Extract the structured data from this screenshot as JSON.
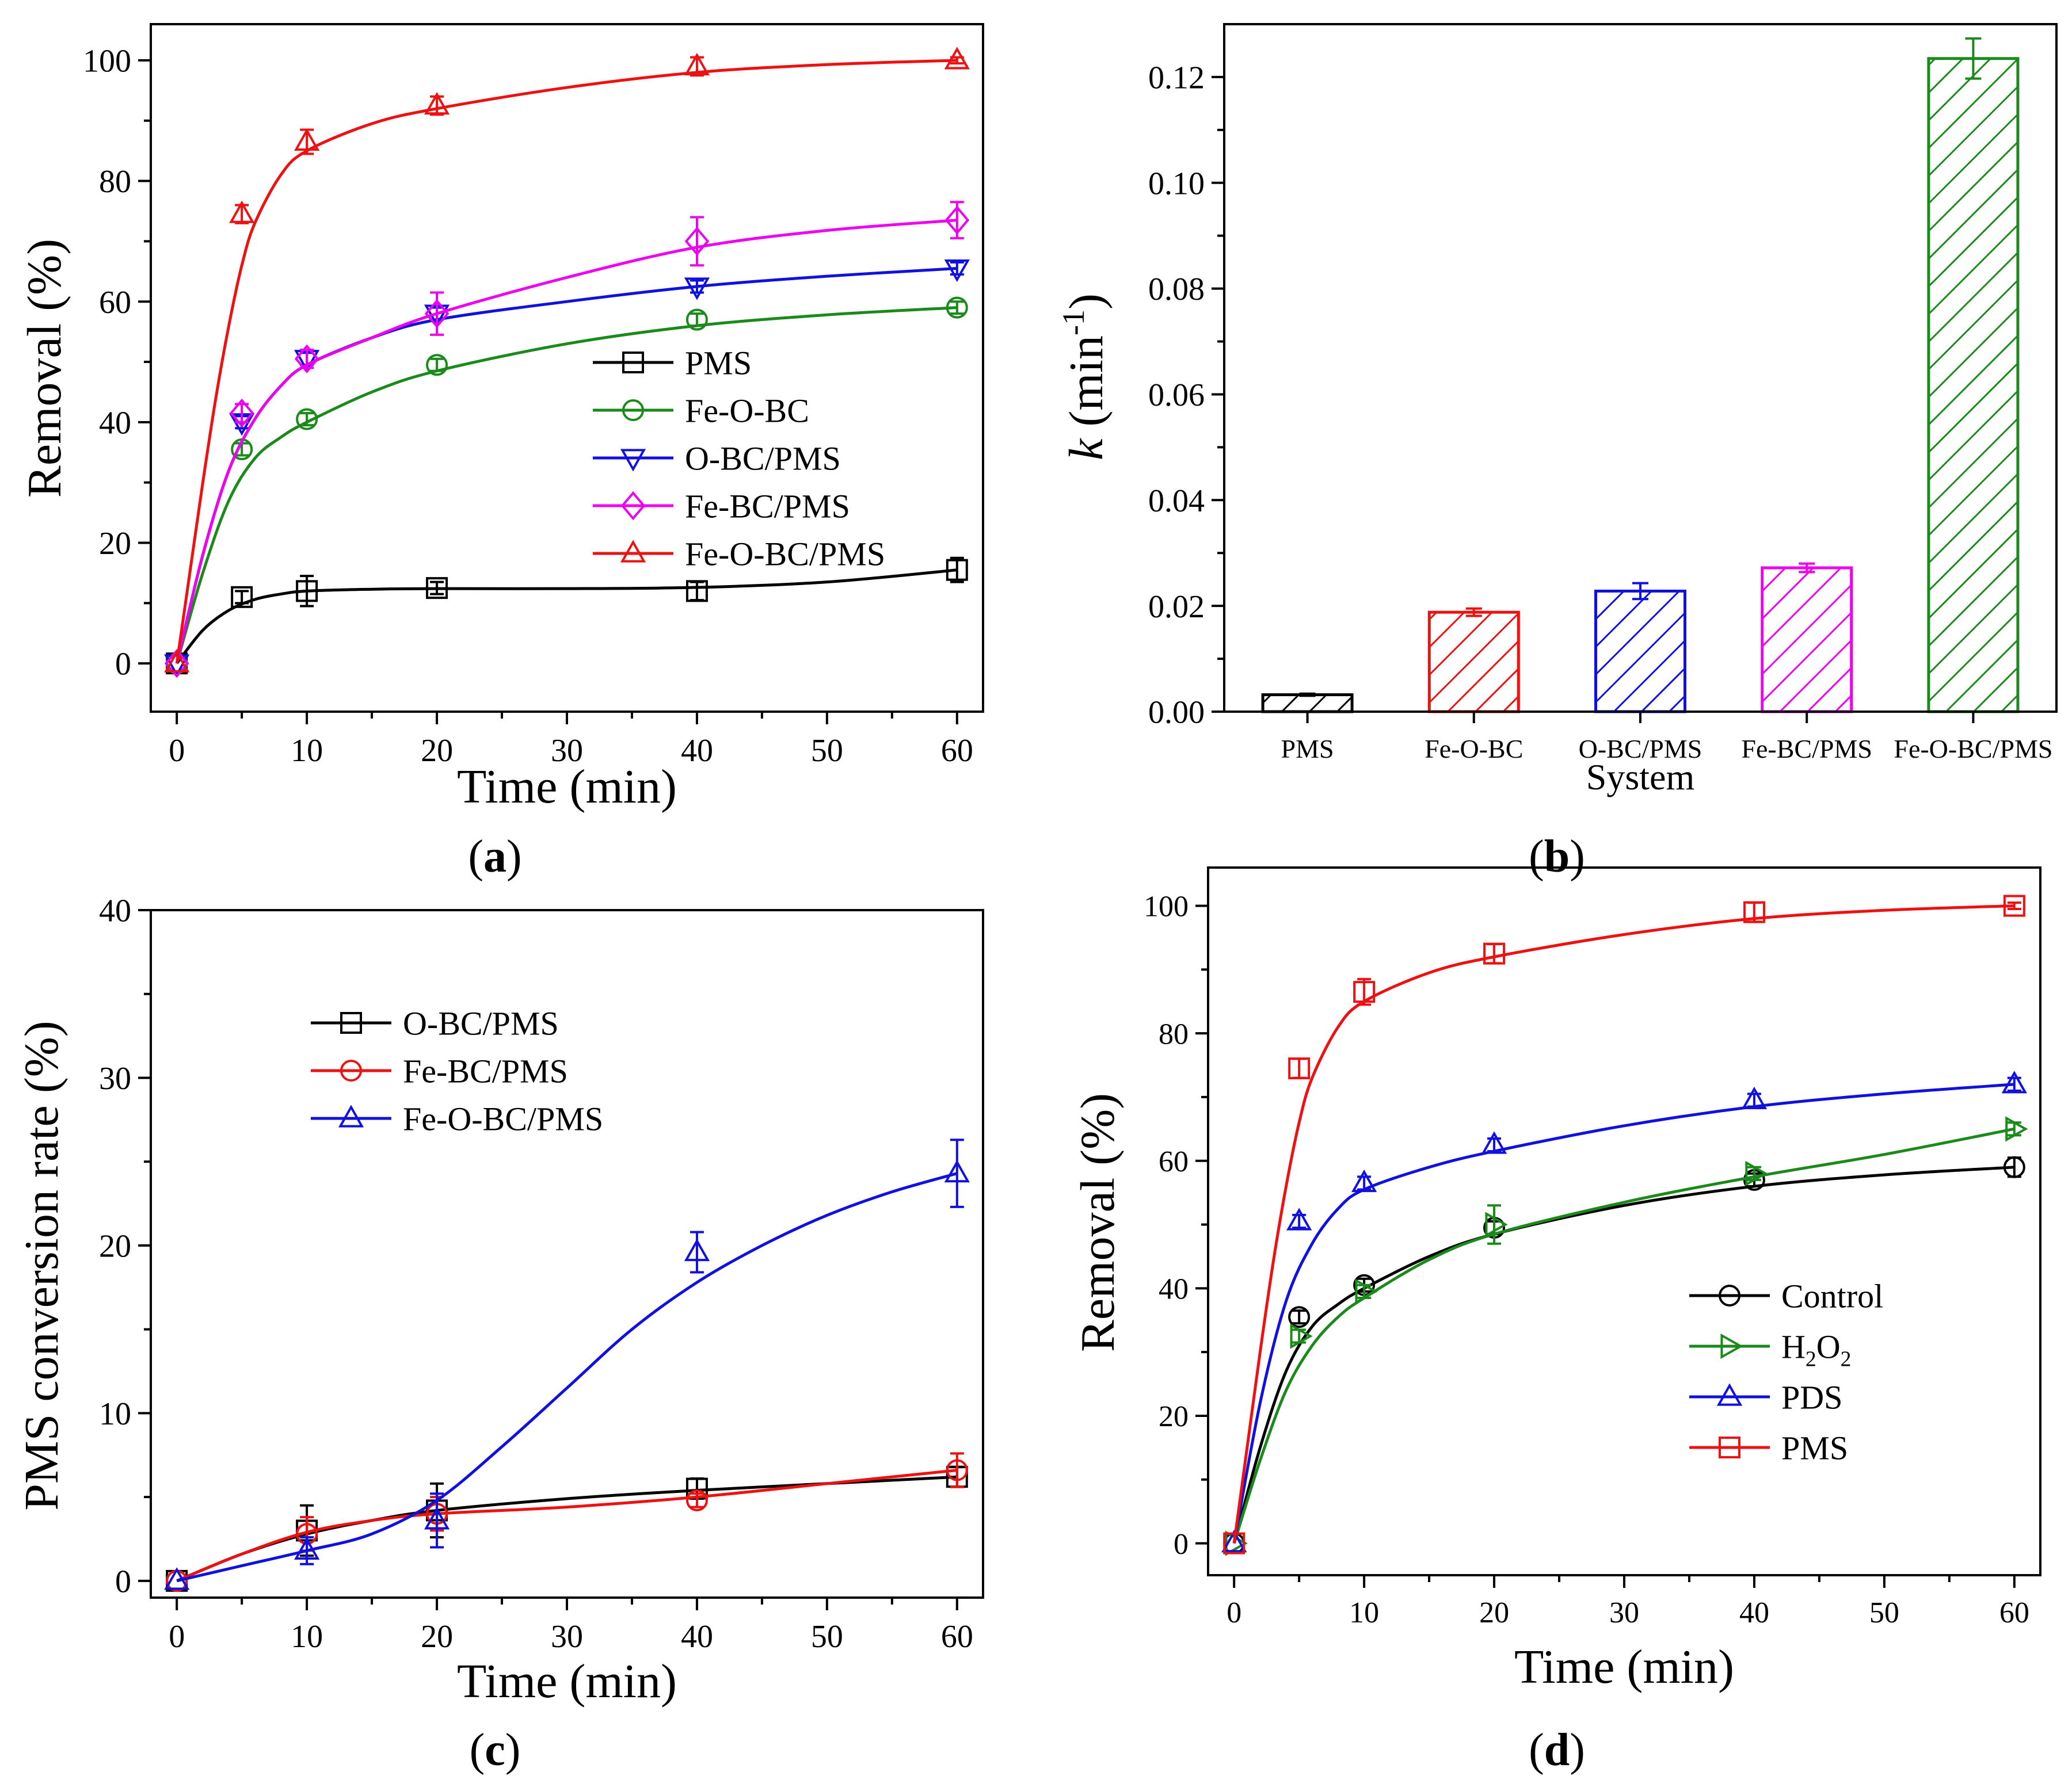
{
  "figure": {
    "colors": {
      "black": "#000000",
      "green": "#1a8a1a",
      "blue": "#1010e0",
      "magenta": "#ee00ee",
      "red": "#ee1111"
    }
  },
  "chart_data": [
    {
      "id": "a",
      "type": "line",
      "caption_prefix": "(",
      "caption_letter": "a",
      "caption_suffix": ")",
      "xlabel": "Time (min)",
      "ylabel": "Removal (%)",
      "xlim": [
        -2,
        62
      ],
      "ylim": [
        -8,
        106
      ],
      "xticks": [
        0,
        10,
        20,
        30,
        40,
        50,
        60
      ],
      "yticks": [
        0,
        20,
        40,
        60,
        80,
        100
      ],
      "legend_position": "center-right",
      "series": [
        {
          "name": "PMS",
          "color": "#000000",
          "marker": "square",
          "x": [
            0,
            5,
            10,
            20,
            40,
            60
          ],
          "y": [
            0,
            11,
            12,
            12.5,
            12,
            15.5
          ],
          "err": [
            0,
            1,
            2.5,
            1,
            1.5,
            2
          ],
          "fit_x": [
            0,
            2,
            4,
            6,
            8,
            10,
            15,
            20,
            30,
            40,
            50,
            60
          ],
          "fit_y": [
            0,
            5.5,
            8.8,
            10.6,
            11.5,
            12,
            12.3,
            12.4,
            12.4,
            12.6,
            13.5,
            15.5
          ]
        },
        {
          "name": "Fe-O-BC",
          "color": "#1a8a1a",
          "marker": "circle",
          "x": [
            0,
            5,
            10,
            20,
            40,
            60
          ],
          "y": [
            0,
            35.5,
            40.5,
            49.5,
            57,
            59
          ],
          "err": [
            0,
            1,
            1,
            1,
            1,
            1
          ],
          "fit_x": [
            0,
            2,
            4,
            6,
            8,
            10,
            15,
            20,
            30,
            40,
            50,
            60
          ],
          "fit_y": [
            0,
            15,
            27,
            34,
            37.5,
            40,
            45,
            48.5,
            53,
            56,
            57.8,
            59
          ]
        },
        {
          "name": "O-BC/PMS",
          "color": "#1010e0",
          "marker": "triangle-down",
          "x": [
            0,
            5,
            10,
            20,
            40,
            60
          ],
          "y": [
            0,
            40,
            50.5,
            58,
            62.5,
            65.5
          ],
          "err": [
            0,
            1,
            1,
            1,
            1,
            1
          ],
          "fit_x": [
            0,
            2,
            4,
            6,
            8,
            10,
            15,
            20,
            30,
            40,
            50,
            60
          ],
          "fit_y": [
            0,
            18,
            32,
            40.5,
            46,
            49.5,
            54,
            57,
            60,
            62.5,
            64.2,
            65.5
          ]
        },
        {
          "name": "Fe-BC/PMS",
          "color": "#ee00ee",
          "marker": "diamond",
          "x": [
            0,
            5,
            10,
            20,
            40,
            60
          ],
          "y": [
            0,
            41.5,
            50.5,
            58,
            70,
            73.5
          ],
          "err": [
            0,
            1.5,
            1.5,
            3.5,
            4,
            3
          ],
          "fit_x": [
            0,
            2,
            4,
            6,
            8,
            10,
            15,
            20,
            30,
            40,
            50,
            60
          ],
          "fit_y": [
            0,
            18,
            32,
            40.5,
            46,
            49.5,
            54,
            58,
            64,
            69,
            71.8,
            73.5
          ]
        },
        {
          "name": "Fe-O-BC/PMS",
          "color": "#ee1111",
          "marker": "triangle-up",
          "x": [
            0,
            5,
            10,
            20,
            40,
            60
          ],
          "y": [
            0,
            74.5,
            86.5,
            92.5,
            99,
            100
          ],
          "err": [
            0,
            1.5,
            2,
            1.5,
            1.5,
            0.5
          ],
          "fit_x": [
            0,
            1,
            2,
            3,
            4,
            5,
            6,
            8,
            10,
            15,
            20,
            30,
            40,
            50,
            60
          ],
          "fit_y": [
            0,
            15,
            30,
            44,
            56,
            66,
            73,
            81,
            85,
            89.5,
            92,
            95.5,
            98,
            99.3,
            100
          ]
        }
      ]
    },
    {
      "id": "b",
      "type": "bar",
      "caption_prefix": "(",
      "caption_letter": "b",
      "caption_suffix": ")",
      "xlabel": "System",
      "ylabel_italic": "k",
      "ylabel_unit_open": " (min",
      "ylabel_sup": "-1",
      "ylabel_unit_close": ")",
      "ylim": [
        0,
        0.13
      ],
      "yticks": [
        0.0,
        0.02,
        0.04,
        0.06,
        0.08,
        0.1,
        0.12
      ],
      "ytick_labels": [
        "0.00",
        "0.02",
        "0.04",
        "0.06",
        "0.08",
        "0.10",
        "0.12"
      ],
      "categories": [
        "PMS",
        "Fe-O-BC",
        "O-BC/PMS",
        "Fe-BC/PMS",
        "Fe-O-BC/PMS"
      ],
      "values": [
        0.0032,
        0.0188,
        0.0228,
        0.0272,
        0.1235
      ],
      "errors": [
        0.0002,
        0.0007,
        0.0015,
        0.0008,
        0.0038
      ],
      "colors": [
        "#000000",
        "#ee1111",
        "#1010e0",
        "#ee00ee",
        "#1a8a1a"
      ]
    },
    {
      "id": "c",
      "type": "line",
      "caption_prefix": "(",
      "caption_letter": "c",
      "caption_suffix": ")",
      "xlabel": "Time (min)",
      "ylabel": "PMS conversion rate (%)",
      "xlim": [
        -2,
        62
      ],
      "ylim": [
        -1,
        40
      ],
      "xticks": [
        0,
        10,
        20,
        30,
        40,
        50,
        60
      ],
      "yticks": [
        0,
        10,
        20,
        30,
        40
      ],
      "legend_position": "top-left",
      "series": [
        {
          "name": "O-BC/PMS",
          "color": "#000000",
          "marker": "square",
          "x": [
            0,
            10,
            20,
            40,
            60
          ],
          "y": [
            0,
            3,
            4.2,
            5.5,
            6.2
          ],
          "err": [
            0,
            1.5,
            1.6,
            0.6,
            0.6
          ],
          "fit_x": [
            0,
            5,
            10,
            15,
            20,
            30,
            40,
            50,
            60
          ],
          "fit_y": [
            0,
            1.6,
            2.8,
            3.6,
            4.2,
            4.9,
            5.4,
            5.8,
            6.2
          ]
        },
        {
          "name": "Fe-BC/PMS",
          "color": "#ee1111",
          "marker": "circle",
          "x": [
            0,
            10,
            20,
            40,
            60
          ],
          "y": [
            0,
            2.8,
            4,
            4.8,
            6.6
          ],
          "err": [
            0,
            1,
            1,
            0.4,
            1
          ],
          "fit_x": [
            0,
            5,
            10,
            15,
            20,
            30,
            40,
            50,
            60
          ],
          "fit_y": [
            0,
            1.6,
            2.9,
            3.6,
            4,
            4.4,
            5,
            5.8,
            6.6
          ]
        },
        {
          "name": "Fe-O-BC/PMS",
          "color": "#1010e0",
          "marker": "triangle-up",
          "x": [
            0,
            10,
            20,
            40,
            60
          ],
          "y": [
            0,
            1.8,
            3.6,
            19.6,
            24.3
          ],
          "err": [
            0,
            0.8,
            1.6,
            1.2,
            2
          ],
          "fit_x": [
            0,
            5,
            10,
            15,
            20,
            25,
            30,
            35,
            40,
            45,
            50,
            55,
            60
          ],
          "fit_y": [
            0,
            0.9,
            1.8,
            2.8,
            4.8,
            8,
            11.5,
            15,
            17.8,
            20,
            21.8,
            23.2,
            24.3
          ]
        }
      ]
    },
    {
      "id": "d",
      "type": "line",
      "caption_prefix": "(",
      "caption_letter": "d",
      "caption_suffix": ")",
      "xlabel": "Time (min)",
      "ylabel": "Removal (%)",
      "xlim": [
        -2,
        62
      ],
      "ylim": [
        -5,
        106
      ],
      "xticks": [
        0,
        10,
        20,
        30,
        40,
        50,
        60
      ],
      "yticks": [
        0,
        20,
        40,
        60,
        80,
        100
      ],
      "legend_position": "bottom-right",
      "series": [
        {
          "name": "Control",
          "label_main": "Control",
          "color": "#000000",
          "marker": "circle",
          "x": [
            0,
            5,
            10,
            20,
            40,
            60
          ],
          "y": [
            0,
            35.5,
            40.5,
            49.5,
            57,
            59
          ],
          "err": [
            0,
            1,
            1,
            1,
            1,
            1.5
          ],
          "fit_x": [
            0,
            2,
            4,
            6,
            8,
            10,
            15,
            20,
            30,
            40,
            50,
            60
          ],
          "fit_y": [
            0,
            15,
            27,
            34,
            37.5,
            40,
            45,
            48.5,
            53,
            56,
            57.8,
            59
          ]
        },
        {
          "name": "H2O2",
          "label_main": "H",
          "label_sub1": "2",
          "label_mid": "O",
          "label_sub2": "2",
          "color": "#1a8a1a",
          "marker": "triangle-right",
          "x": [
            0,
            5,
            10,
            20,
            40,
            60
          ],
          "y": [
            0,
            32.5,
            39.5,
            50,
            58,
            65
          ],
          "err": [
            0,
            1,
            1,
            3,
            1,
            1
          ],
          "fit_x": [
            0,
            2,
            4,
            6,
            8,
            10,
            15,
            20,
            30,
            40,
            50,
            60
          ],
          "fit_y": [
            0,
            13,
            24,
            31,
            35.5,
            38.5,
            44.5,
            48.5,
            53.5,
            57.5,
            61,
            65
          ]
        },
        {
          "name": "PDS",
          "label_main": "PDS",
          "color": "#1010e0",
          "marker": "triangle-up",
          "x": [
            0,
            5,
            10,
            20,
            40,
            60
          ],
          "y": [
            0,
            50.5,
            56.5,
            62.5,
            69.5,
            72
          ],
          "err": [
            0,
            1,
            1,
            1,
            1,
            1
          ],
          "fit_x": [
            0,
            2,
            4,
            6,
            8,
            10,
            15,
            20,
            30,
            40,
            50,
            60
          ],
          "fit_y": [
            0,
            22,
            38,
            47,
            52.5,
            55.5,
            59,
            61.5,
            65.5,
            68.5,
            70.5,
            72
          ]
        },
        {
          "name": "PMS",
          "label_main": "PMS",
          "color": "#ee1111",
          "marker": "square",
          "x": [
            0,
            5,
            10,
            20,
            40,
            60
          ],
          "y": [
            0,
            74.5,
            86.5,
            92.5,
            99,
            100
          ],
          "err": [
            0,
            1.5,
            2,
            1.5,
            1.5,
            0.5
          ],
          "fit_x": [
            0,
            1,
            2,
            3,
            4,
            5,
            6,
            8,
            10,
            15,
            20,
            30,
            40,
            50,
            60
          ],
          "fit_y": [
            0,
            15,
            30,
            44,
            56,
            66,
            73,
            81,
            85,
            89.5,
            92,
            95.5,
            98,
            99.3,
            100
          ]
        }
      ]
    }
  ]
}
